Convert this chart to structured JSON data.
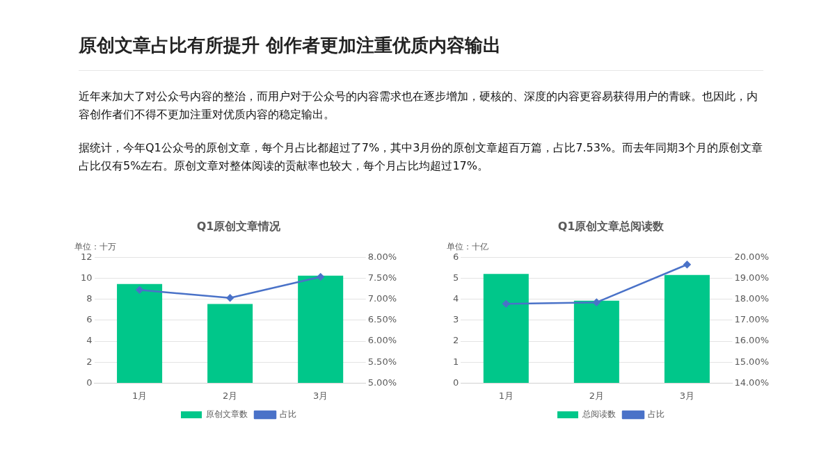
{
  "chart_data": [
    {
      "type": "other",
      "title": "原创文章占比有所提升 创作者更加注重优质内容输出",
      "annotations": [
        "近年来加大了对公众号内容的整治，而用户对于公众号的内容需求也在逐步增加，硬核的、深度的内容更容易获得用户的青睐。也因此，内容创作者们不得不更加注重对优质内容的稳定输出。",
        "据统计，今年Q1公众号的原创文章，每个月占比都超过了7%，其中3月份的原创文章超百万篇，占比7.53%。而去年同期3个月的原创文章占比仅有5%左右。原创文章对整体阅读的贡献率也较大，每个月占比均超过17%。"
      ]
    },
    {
      "type": "bar",
      "title": "Q1原创文章情况",
      "ylabel": "单位：十万",
      "categories": [
        "1月",
        "2月",
        "3月"
      ],
      "grid": "y",
      "legend": "bottom",
      "marker": "diamond",
      "ylim": [
        0,
        12
      ],
      "yticks": [
        0,
        2,
        4,
        6,
        8,
        10,
        12
      ],
      "y2lim": [
        5,
        8
      ],
      "y2ticks": [
        {
          "value": 5,
          "label": "5.00%"
        },
        {
          "value": 5.5,
          "label": "5.50%"
        },
        {
          "value": 6,
          "label": "6.00%"
        },
        {
          "value": 6.5,
          "label": "6.50%"
        },
        {
          "value": 7,
          "label": "7.00%"
        },
        {
          "value": 7.5,
          "label": "7.50%"
        },
        {
          "value": 8,
          "label": "8.00%"
        }
      ],
      "series": [
        {
          "name": "原创文章数",
          "type": "bar",
          "color": "#00c78a",
          "values": [
            9.45,
            7.55,
            10.25
          ]
        },
        {
          "name": "占比",
          "type": "line",
          "axis": "y2",
          "color": "#4a72c8",
          "values": [
            7.22,
            7.03,
            7.53
          ]
        }
      ]
    },
    {
      "type": "bar",
      "title": "Q1原创文章总阅读数",
      "ylabel": "单位：十亿",
      "categories": [
        "1月",
        "2月",
        "3月"
      ],
      "grid": "y",
      "legend": "bottom",
      "marker": "diamond",
      "ylim": [
        0,
        6
      ],
      "yticks": [
        0,
        1,
        2,
        3,
        4,
        5,
        6
      ],
      "y2lim": [
        14,
        20
      ],
      "y2ticks": [
        {
          "value": 14,
          "label": "14.00%"
        },
        {
          "value": 15,
          "label": "15.00%"
        },
        {
          "value": 16,
          "label": "16.00%"
        },
        {
          "value": 17,
          "label": "17.00%"
        },
        {
          "value": 18,
          "label": "18.00%"
        },
        {
          "value": 19,
          "label": "19.00%"
        },
        {
          "value": 20,
          "label": "20.00%"
        }
      ],
      "series": [
        {
          "name": "总阅读数",
          "type": "bar",
          "color": "#00c78a",
          "values": [
            5.2,
            3.93,
            5.15
          ]
        },
        {
          "name": "占比",
          "type": "line",
          "axis": "y2",
          "color": "#4a72c8",
          "values": [
            17.78,
            17.85,
            19.65
          ]
        }
      ]
    }
  ]
}
